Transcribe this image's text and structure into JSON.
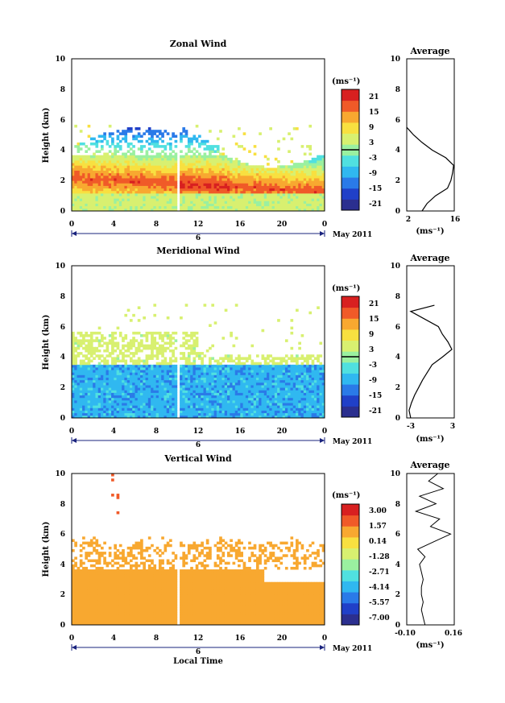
{
  "panels": [
    {
      "title": "Zonal Wind",
      "ylabel": "Height (km)",
      "y_ticks": [
        "0",
        "2",
        "4",
        "6",
        "8",
        "10"
      ],
      "x_ticks": [
        "0",
        "4",
        "8",
        "12",
        "16",
        "20",
        "0"
      ],
      "date_day": "6",
      "month_label": "May 2011",
      "unit": "(ms⁻¹)",
      "colorbar_ticks": [
        "21",
        "15",
        "9",
        "3",
        "-3",
        "-9",
        "-15",
        "-21"
      ],
      "colorbar_zero_value": "3",
      "average_title": "Average",
      "average_xlabel": "(ms⁻¹)",
      "average_x_ticks": [
        "2",
        "16"
      ],
      "average_y_ticks": [
        "0",
        "2",
        "4",
        "6",
        "8",
        "10"
      ]
    },
    {
      "title": "Meridional Wind",
      "ylabel": "Height (km)",
      "y_ticks": [
        "0",
        "2",
        "4",
        "6",
        "8",
        "10"
      ],
      "x_ticks": [
        "0",
        "4",
        "8",
        "12",
        "16",
        "20",
        "0"
      ],
      "date_day": "6",
      "month_label": "May 2011",
      "unit": "(ms⁻¹)",
      "colorbar_ticks": [
        "21",
        "15",
        "9",
        "3",
        "-3",
        "-9",
        "-15",
        "-21"
      ],
      "average_title": "Average",
      "average_xlabel": "(ms⁻¹)",
      "average_x_ticks": [
        "-3",
        "3"
      ],
      "average_y_ticks": [
        "0",
        "2",
        "4",
        "6",
        "8",
        "10"
      ]
    },
    {
      "title": "Vertical Wind",
      "ylabel": "Height (km)",
      "y_ticks": [
        "0",
        "2",
        "4",
        "6",
        "8",
        "10"
      ],
      "x_ticks": [
        "0",
        "4",
        "8",
        "12",
        "16",
        "20",
        "0"
      ],
      "date_day": "6",
      "month_label": "May 2011",
      "xlabel": "Local Time",
      "unit": "(ms⁻¹)",
      "colorbar_ticks": [
        "3.00",
        "1.57",
        "0.14",
        "-1.28",
        "-2.71",
        "-4.14",
        "-5.57",
        "-7.00"
      ],
      "average_title": "Average",
      "average_xlabel": "(ms⁻¹)",
      "average_x_ticks": [
        "-0.10",
        "0.16"
      ],
      "average_y_ticks": [
        "0",
        "2",
        "4",
        "6",
        "8",
        "10"
      ]
    }
  ],
  "colors": {
    "colormap": [
      "#2b2f8f",
      "#2040c8",
      "#2a7ae8",
      "#30b8f0",
      "#50e0e0",
      "#9af0a0",
      "#d8f070",
      "#f8e040",
      "#f8a830",
      "#f05a28",
      "#d82020"
    ]
  },
  "chart_data": [
    {
      "type": "heatmap",
      "title": "Zonal Wind",
      "ylabel": "Height (km)",
      "x_range": [
        0,
        24
      ],
      "y_range": [
        0,
        10
      ],
      "color_range": [
        -21,
        21
      ],
      "average_profile": {
        "x_range": [
          2,
          16
        ],
        "heights": [
          0.0,
          0.5,
          1.0,
          1.5,
          2.0,
          2.5,
          3.0,
          3.5,
          4.0,
          4.5,
          5.0,
          5.5
        ],
        "values": [
          6.5,
          8.0,
          10.5,
          14.0,
          15.0,
          15.5,
          15.8,
          13.5,
          9.5,
          6.5,
          4.0,
          2.0
        ]
      }
    },
    {
      "type": "heatmap",
      "title": "Meridional Wind",
      "ylabel": "Height (km)",
      "x_range": [
        0,
        24
      ],
      "y_range": [
        0,
        10
      ],
      "color_range": [
        -21,
        21
      ],
      "average_profile": {
        "x_range": [
          -3,
          3
        ],
        "heights": [
          0.0,
          0.5,
          1.0,
          1.5,
          2.0,
          2.5,
          3.0,
          3.5,
          4.0,
          4.5,
          5.0,
          5.5,
          6.0,
          7.0,
          7.4
        ],
        "values": [
          -2.5,
          -2.7,
          -2.4,
          -2.0,
          -1.5,
          -1.0,
          -0.4,
          0.2,
          1.5,
          2.7,
          2.2,
          1.5,
          1.0,
          -2.5,
          0.5
        ]
      }
    },
    {
      "type": "heatmap",
      "title": "Vertical Wind",
      "ylabel": "Height (km)",
      "xlabel": "Local Time",
      "x_range": [
        0,
        24
      ],
      "y_range": [
        0,
        10
      ],
      "color_range": [
        -7.0,
        3.0
      ],
      "average_profile": {
        "x_range": [
          -0.1,
          0.16
        ],
        "heights": [
          0.0,
          0.5,
          1.0,
          1.5,
          2.0,
          2.5,
          3.0,
          3.5,
          4.0,
          4.5,
          5.0,
          5.5,
          6.0,
          6.5,
          7.0,
          7.5,
          8.0,
          8.5,
          9.0,
          9.5,
          10.0
        ],
        "values": [
          0.0,
          -0.01,
          -0.02,
          -0.01,
          -0.02,
          -0.02,
          -0.01,
          -0.02,
          -0.03,
          0.0,
          -0.04,
          0.05,
          0.14,
          0.03,
          0.08,
          -0.05,
          0.06,
          -0.03,
          0.1,
          0.02,
          0.07
        ]
      }
    }
  ]
}
